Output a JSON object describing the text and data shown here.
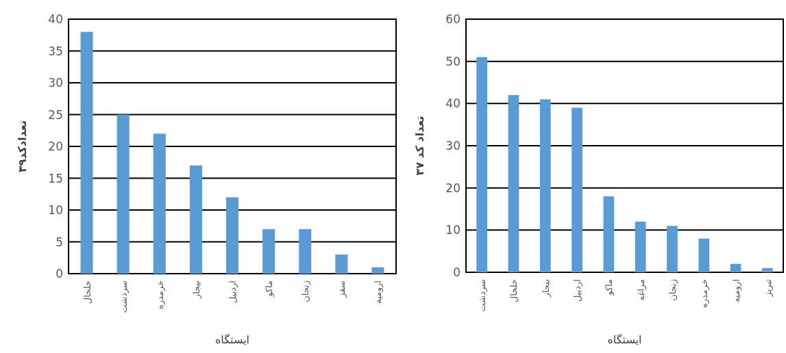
{
  "chart_data": [
    {
      "type": "bar",
      "categories": [
        "خلخال",
        "سردشت",
        "خرمدره",
        "بیجار",
        "اردبیل",
        "ماکو",
        "زنجان",
        "سقز",
        "ارومیه"
      ],
      "values": [
        38,
        25,
        22,
        17,
        12,
        7,
        7,
        3,
        1
      ],
      "color": "#5b9bd5",
      "xlabel": "ایستگاه",
      "ylabel": "تعدادکد۳۹",
      "ylim": [
        0,
        40
      ],
      "yticks": [
        0,
        5,
        10,
        15,
        20,
        25,
        30,
        35,
        40
      ],
      "grid": "y"
    },
    {
      "type": "bar",
      "categories": [
        "سردشت",
        "خلخال",
        "بیجار",
        "اردبیل",
        "ماکو",
        "مراغه",
        "زنجان",
        "خرمدره",
        "ارومیه",
        "تبریز"
      ],
      "values": [
        51,
        42,
        41,
        39,
        18,
        12,
        11,
        8,
        2,
        1
      ],
      "color": "#5b9bd5",
      "xlabel": "ایستگاه",
      "ylabel": "تعداد کد ۳۷",
      "ylim": [
        0,
        60
      ],
      "yticks": [
        0,
        10,
        20,
        30,
        40,
        50,
        60
      ],
      "grid": "y"
    }
  ]
}
